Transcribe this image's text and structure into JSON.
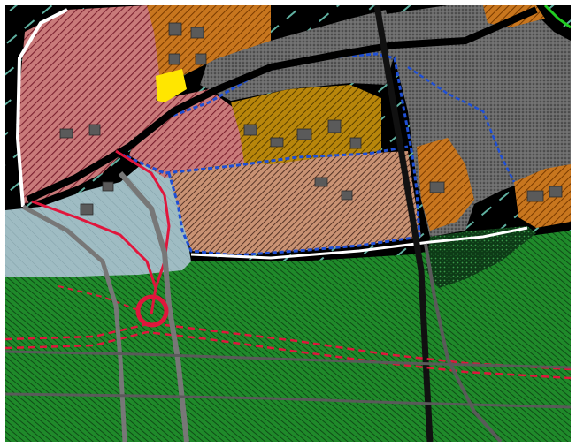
{
  "map": {
    "type": "zoning-plan",
    "colors": {
      "background": "#000000",
      "residential_pink": "#c97a7a",
      "residential_pink_hatch": "#7a1f2e",
      "commercial_orange": "#c8761e",
      "commercial_orange_hatch": "#7a3b00",
      "industrial_gray": "#6a6a6a",
      "industrial_gray_dots": "#2a2a2a",
      "ochre_zone": "#b8860b",
      "yellow_zone": "#ffe600",
      "salmon_zone": "#c99273",
      "water_lightblue": "#9fbcc3",
      "green_field": "#1f8a2a",
      "forest_dark": "#0d4a1a",
      "boundary_blue": "#1e4fd6",
      "road_red": "#e0163c",
      "road_white": "#ffffff",
      "teal_hatch": "#5fb0a0"
    },
    "legend": []
  }
}
